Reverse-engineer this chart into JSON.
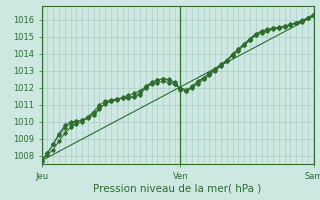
{
  "bg_color": "#cce8e0",
  "grid_color": "#aacfc8",
  "line_color": "#2d6e2d",
  "marker_color": "#2d6e2d",
  "xlabel": "Pression niveau de la mer( hPa )",
  "xlabel_fontsize": 7.5,
  "tick_label_color": "#2d6e2d",
  "tick_fontsize": 6,
  "ylim": [
    1007.5,
    1016.8
  ],
  "yticks": [
    1008,
    1009,
    1010,
    1011,
    1012,
    1013,
    1014,
    1015,
    1016
  ],
  "xtick_labels": [
    "Jeu",
    "Ven",
    "Sam"
  ],
  "total_points": 48,
  "series1": [
    1007.7,
    1008.05,
    1008.35,
    1008.85,
    1009.3,
    1009.65,
    1009.85,
    1010.0,
    1010.25,
    1010.5,
    1010.78,
    1011.05,
    1011.18,
    1011.28,
    1011.42,
    1011.55,
    1011.65,
    1011.82,
    1012.05,
    1012.18,
    1012.28,
    1012.38,
    1012.28,
    1012.18,
    1011.98,
    1011.88,
    1012.02,
    1012.22,
    1012.48,
    1012.72,
    1012.98,
    1013.28,
    1013.58,
    1013.88,
    1014.18,
    1014.48,
    1014.78,
    1015.08,
    1015.2,
    1015.32,
    1015.42,
    1015.52,
    1015.62,
    1015.72,
    1015.82,
    1015.98,
    1016.08,
    1016.2
  ],
  "series2": [
    1007.7,
    1008.15,
    1008.65,
    1009.2,
    1009.62,
    1009.88,
    1009.98,
    1010.08,
    1010.28,
    1010.58,
    1010.98,
    1011.18,
    1011.28,
    1011.33,
    1011.38,
    1011.43,
    1011.48,
    1011.68,
    1012.08,
    1012.32,
    1012.45,
    1012.52,
    1012.42,
    1012.22,
    1011.88,
    1011.82,
    1012.08,
    1012.38,
    1012.58,
    1012.82,
    1013.08,
    1013.32,
    1013.58,
    1013.92,
    1014.22,
    1014.52,
    1014.82,
    1015.12,
    1015.28,
    1015.38,
    1015.48,
    1015.53,
    1015.58,
    1015.68,
    1015.78,
    1015.88,
    1016.08,
    1016.28
  ],
  "series3": [
    1007.7,
    1008.12,
    1008.68,
    1009.28,
    1009.78,
    1009.98,
    1010.02,
    1010.08,
    1010.18,
    1010.38,
    1010.72,
    1011.08,
    1011.22,
    1011.3,
    1011.36,
    1011.4,
    1011.43,
    1011.58,
    1011.98,
    1012.25,
    1012.42,
    1012.52,
    1012.48,
    1012.32,
    1011.92,
    1011.78,
    1011.98,
    1012.32,
    1012.58,
    1012.85,
    1013.12,
    1013.38,
    1013.62,
    1013.98,
    1014.28,
    1014.58,
    1014.88,
    1015.18,
    1015.32,
    1015.42,
    1015.5,
    1015.56,
    1015.6,
    1015.7,
    1015.8,
    1015.92,
    1016.12,
    1016.32
  ],
  "trend_y": [
    1007.7,
    1016.2
  ]
}
